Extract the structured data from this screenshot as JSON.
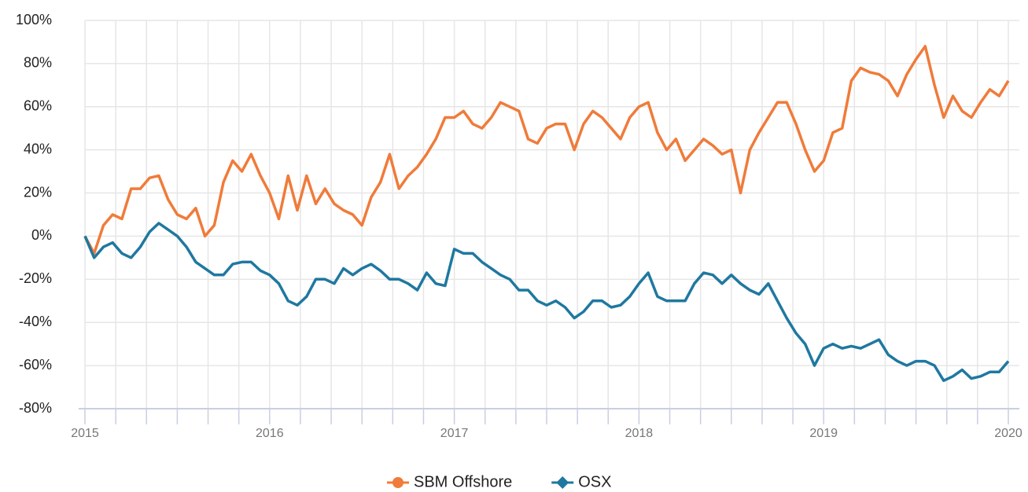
{
  "chart_data": {
    "type": "line",
    "x": [
      2015,
      2015.05,
      2015.1,
      2015.15,
      2015.2,
      2015.25,
      2015.3,
      2015.35,
      2015.4,
      2015.45,
      2015.5,
      2015.55,
      2015.6,
      2015.65,
      2015.7,
      2015.75,
      2015.8,
      2015.85,
      2015.9,
      2015.95,
      2016,
      2016.05,
      2016.1,
      2016.15,
      2016.2,
      2016.25,
      2016.3,
      2016.35,
      2016.4,
      2016.45,
      2016.5,
      2016.55,
      2016.6,
      2016.65,
      2016.7,
      2016.75,
      2016.8,
      2016.85,
      2016.9,
      2016.95,
      2017,
      2017.05,
      2017.1,
      2017.15,
      2017.2,
      2017.25,
      2017.3,
      2017.35,
      2017.4,
      2017.45,
      2017.5,
      2017.55,
      2017.6,
      2017.65,
      2017.7,
      2017.75,
      2017.8,
      2017.85,
      2017.9,
      2017.95,
      2018,
      2018.05,
      2018.1,
      2018.15,
      2018.2,
      2018.25,
      2018.3,
      2018.35,
      2018.4,
      2018.45,
      2018.5,
      2018.55,
      2018.6,
      2018.65,
      2018.7,
      2018.75,
      2018.8,
      2018.85,
      2018.9,
      2018.95,
      2019,
      2019.05,
      2019.1,
      2019.15,
      2019.2,
      2019.25,
      2019.3,
      2019.35,
      2019.4,
      2019.45,
      2019.5,
      2019.55,
      2019.6,
      2019.65,
      2019.7,
      2019.75,
      2019.8,
      2019.85,
      2019.9,
      2019.95,
      2020
    ],
    "series": [
      {
        "name": "SBM Offshore",
        "color": "#f07b3a",
        "marker": "circle",
        "values": [
          0,
          -8,
          5,
          10,
          8,
          22,
          22,
          27,
          28,
          17,
          10,
          8,
          13,
          0,
          5,
          25,
          35,
          30,
          38,
          28,
          20,
          8,
          28,
          12,
          28,
          15,
          22,
          15,
          12,
          10,
          5,
          18,
          25,
          38,
          22,
          28,
          32,
          38,
          45,
          55,
          55,
          58,
          52,
          50,
          55,
          62,
          60,
          58,
          45,
          43,
          50,
          52,
          52,
          40,
          52,
          58,
          55,
          50,
          45,
          55,
          60,
          62,
          48,
          40,
          45,
          35,
          40,
          45,
          42,
          38,
          40,
          20,
          40,
          48,
          55,
          62,
          62,
          52,
          40,
          30,
          35,
          48,
          50,
          72,
          78,
          76,
          75,
          72,
          65,
          75,
          82,
          88,
          70,
          55,
          65,
          58,
          55,
          62,
          68,
          65,
          72
        ]
      },
      {
        "name": "OSX",
        "color": "#1f78a0",
        "marker": "diamond",
        "values": [
          0,
          -10,
          -5,
          -3,
          -8,
          -10,
          -5,
          2,
          6,
          3,
          0,
          -5,
          -12,
          -15,
          -18,
          -18,
          -13,
          -12,
          -12,
          -16,
          -18,
          -22,
          -30,
          -32,
          -28,
          -20,
          -20,
          -22,
          -15,
          -18,
          -15,
          -13,
          -16,
          -20,
          -20,
          -22,
          -25,
          -17,
          -22,
          -23,
          -6,
          -8,
          -8,
          -12,
          -15,
          -18,
          -20,
          -25,
          -25,
          -30,
          -32,
          -30,
          -33,
          -38,
          -35,
          -30,
          -30,
          -33,
          -32,
          -28,
          -22,
          -17,
          -28,
          -30,
          -30,
          -30,
          -22,
          -17,
          -18,
          -22,
          -18,
          -22,
          -25,
          -27,
          -22,
          -30,
          -38,
          -45,
          -50,
          -60,
          -52,
          -50,
          -52,
          -51,
          -52,
          -50,
          -48,
          -55,
          -58,
          -60,
          -58,
          -58,
          -60,
          -67,
          -65,
          -62,
          -66,
          -65,
          -63,
          -63,
          -58
        ]
      }
    ],
    "xlim": [
      2015,
      2020
    ],
    "xticks": [
      2015,
      2016,
      2017,
      2018,
      2019,
      2020
    ],
    "xminorticks": [
      2015.1667,
      2015.3333,
      2015.5,
      2015.6667,
      2015.8333,
      2016.1667,
      2016.3333,
      2016.5,
      2016.6667,
      2016.8333,
      2017.1667,
      2017.3333,
      2017.5,
      2017.6667,
      2017.8333,
      2018.1667,
      2018.3333,
      2018.5,
      2018.6667,
      2018.8333,
      2019.1667,
      2019.3333,
      2019.5,
      2019.6667,
      2019.8333
    ],
    "ylim": [
      -80,
      100
    ],
    "yticks": [
      {
        "value": -80,
        "label": "-80%"
      },
      {
        "value": -60,
        "label": "-60%"
      },
      {
        "value": -40,
        "label": "-40%"
      },
      {
        "value": -20,
        "label": "-20%"
      },
      {
        "value": 0,
        "label": "0%"
      },
      {
        "value": 20,
        "label": "20%"
      },
      {
        "value": 40,
        "label": "40%"
      },
      {
        "value": 60,
        "label": "60%"
      },
      {
        "value": 80,
        "label": "80%"
      },
      {
        "value": 100,
        "label": "100%"
      }
    ],
    "grid": true,
    "legend": "bottom"
  }
}
